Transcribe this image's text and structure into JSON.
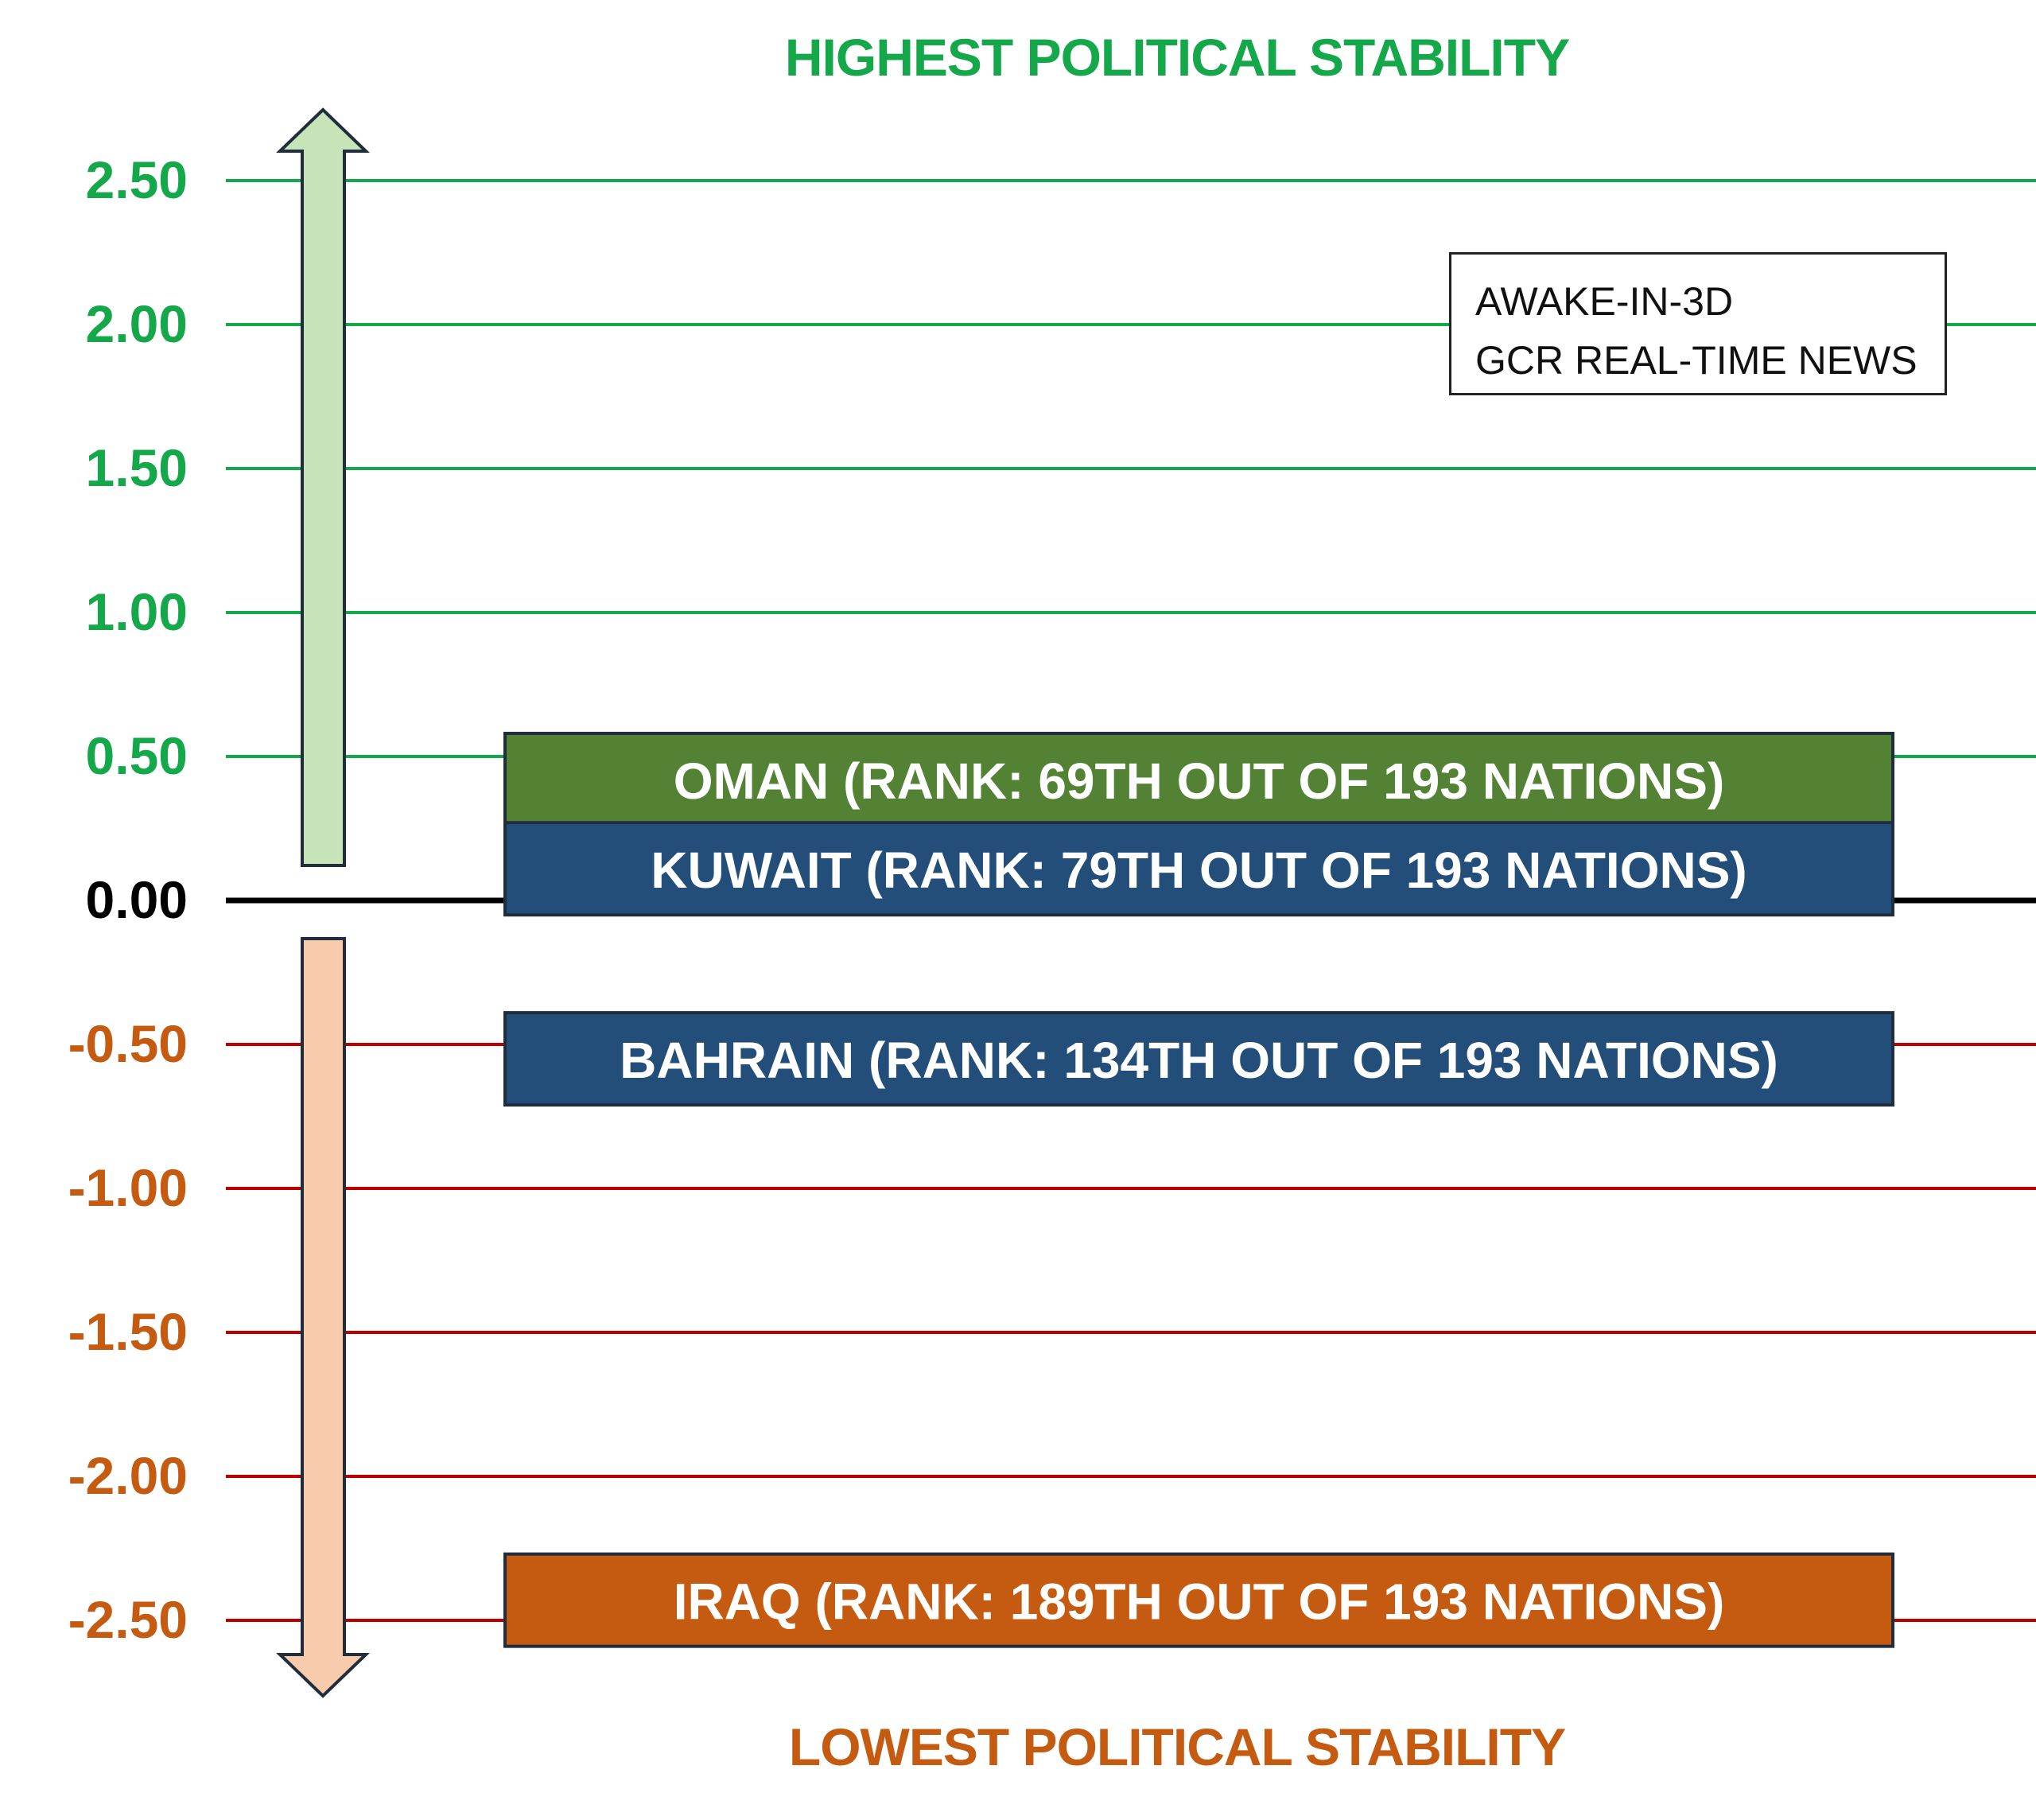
{
  "titles": {
    "top": "HIGHEST POLITICAL STABILITY",
    "bottom": "LOWEST POLITICAL STABILITY"
  },
  "watermark": {
    "line1": "AWAKE-IN-3D",
    "line2": "GCR REAL-TIME NEWS"
  },
  "chart_data": {
    "type": "bar",
    "ylim": [
      -2.5,
      2.5
    ],
    "yticks": [
      {
        "value": 2.5,
        "label": "2.50"
      },
      {
        "value": 2.0,
        "label": "2.00"
      },
      {
        "value": 1.5,
        "label": "1.50"
      },
      {
        "value": 1.0,
        "label": "1.00"
      },
      {
        "value": 0.5,
        "label": "0.50"
      },
      {
        "value": 0.0,
        "label": "0.00"
      },
      {
        "value": -0.5,
        "label": "-0.50"
      },
      {
        "value": -1.0,
        "label": "-1.00"
      },
      {
        "value": -1.5,
        "label": "-1.50"
      },
      {
        "value": -2.0,
        "label": "-2.00"
      },
      {
        "value": -2.5,
        "label": "-2.50"
      }
    ],
    "bars": [
      {
        "label": "OMAN (RANK: 69TH OUT OF 193 NATIONS)",
        "value": 0.42,
        "color": "#548235"
      },
      {
        "label": "KUWAIT (RANK: 79TH OUT OF 193 NATIONS)",
        "value": 0.11,
        "color": "#234e79"
      },
      {
        "label": "BAHRAIN (RANK: 134TH OUT OF 193 NATIONS)",
        "value": -0.55,
        "color": "#234e79"
      },
      {
        "label": "IRAQ (RANK: 189TH OUT OF 193 NATIONS)",
        "value": -2.43,
        "color": "#c55a11"
      }
    ],
    "colors": {
      "positive": "#14a84b",
      "zero": "#000000",
      "negative": "#c00000",
      "negative_label": "#c55a11",
      "up_arrow_fill": "#c7e3b8",
      "down_arrow_fill": "#f8cbad"
    },
    "grid": true
  }
}
